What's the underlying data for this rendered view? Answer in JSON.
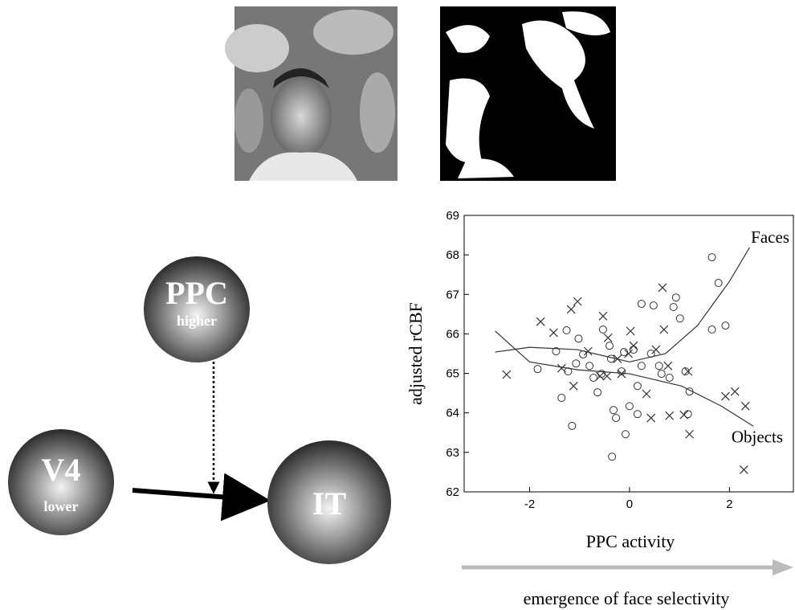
{
  "diagram": {
    "nodes": [
      {
        "label": "PPC",
        "sublabel": "higher"
      },
      {
        "label": "V4",
        "sublabel": "lower"
      },
      {
        "label": "IT"
      }
    ]
  },
  "chart_data": {
    "type": "scatter",
    "ylabel": "adjusted rCBF",
    "xlabel": "PPC activity",
    "xlim": [
      -3.31,
      3.28
    ],
    "ylim": [
      62,
      69
    ],
    "xticks": [
      -2,
      0,
      2
    ],
    "yticks": [
      62,
      63,
      64,
      65,
      66,
      67,
      68,
      69
    ],
    "series": [
      {
        "marker": "o",
        "color": "#333333",
        "x": [
          -1.84,
          -1.47,
          -1.26,
          -1.36,
          -1.15,
          -1.07,
          -1.23,
          -0.93,
          -0.8,
          -0.72,
          -0.64,
          -0.56,
          -0.53,
          -0.4,
          -0.37,
          -0.32,
          -0.27,
          -0.35,
          -0.16,
          -0.11,
          -0.08,
          0,
          0.08,
          0.16,
          0.24,
          0.16,
          0.24,
          0.48,
          0.43,
          0.59,
          0.64,
          0.8,
          0.93,
          0.88,
          1.01,
          1.12,
          1.2,
          1.17,
          1.65,
          1.65,
          1.92,
          1.78,
          -1.02
        ],
        "values": [
          65.11,
          65.56,
          66.09,
          64.38,
          63.67,
          65.25,
          65.05,
          65.48,
          65.19,
          64.89,
          64.52,
          64.99,
          66.11,
          65.7,
          65.37,
          64.07,
          63.87,
          62.89,
          65.05,
          65.54,
          63.46,
          64.17,
          65.6,
          64.68,
          65.19,
          63.97,
          66.76,
          66.72,
          65.5,
          65.19,
          64.99,
          64.89,
          66.92,
          66.68,
          66.39,
          65.05,
          64.54,
          63.97,
          67.94,
          66.11,
          66.21,
          67.29,
          65.88
        ]
      },
      {
        "marker": "x",
        "color": "#333333",
        "x": [
          -2.46,
          -1.78,
          -1.52,
          -1.17,
          -1.04,
          -1.36,
          -1.12,
          -0.83,
          -0.59,
          -0.53,
          -0.43,
          -0.24,
          -0.02,
          0.08,
          0.02,
          0.34,
          0.43,
          0.53,
          0.66,
          0.69,
          0.77,
          0.8,
          1.09,
          1.2,
          1.17,
          1.92,
          2.11,
          2.32,
          2.29,
          -0.16,
          -0.45
        ],
        "values": [
          64.97,
          66.31,
          66.03,
          66.62,
          66.82,
          65.13,
          64.68,
          65.56,
          64.93,
          66.45,
          65.9,
          65.37,
          65.5,
          65.7,
          66.07,
          64.48,
          63.87,
          65.6,
          67.17,
          66.11,
          65.19,
          63.93,
          63.95,
          63.46,
          65.05,
          64.42,
          64.54,
          64.17,
          62.56,
          64.99,
          64.93
        ]
      }
    ],
    "curves": [
      {
        "label": "Faces",
        "x": [
          -2.69,
          -2,
          -1.04,
          0,
          0.72,
          1.36,
          2,
          2.48
        ],
        "values": [
          65.54,
          65.66,
          65.6,
          65.29,
          65.5,
          66.21,
          67.33,
          68.35
        ]
      },
      {
        "label": "Objects",
        "x": [
          -2.69,
          -2,
          -1.04,
          0,
          1.04,
          1.84,
          2.48
        ],
        "values": [
          66.07,
          65.29,
          65.09,
          64.99,
          64.68,
          64.17,
          63.66
        ]
      }
    ]
  },
  "caption": "emergence of face selectivity"
}
